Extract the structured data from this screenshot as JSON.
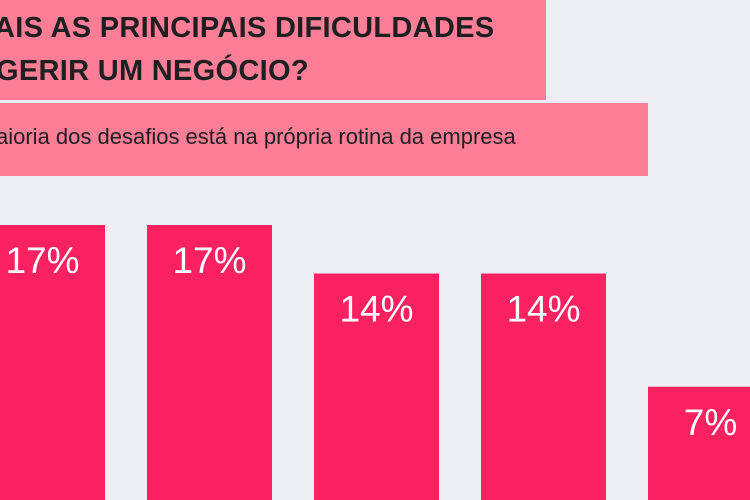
{
  "header": {
    "title_line_1": "AIS AS PRINCIPAIS DIFICULDADES",
    "title_line_2": "GERIR UM NEGÓCIO?",
    "subtitle": "aioria dos desafios está na própria rotina da empresa"
  },
  "colors": {
    "background": "#edeef3",
    "band": "#fb7d96",
    "bar": "#f92160",
    "bar_label": "#ffffff",
    "text": "#1f1f22"
  },
  "chart_data": {
    "type": "bar",
    "title": "",
    "xlabel": "",
    "ylabel": "",
    "categories": [
      "",
      "",
      "",
      "",
      ""
    ],
    "values": [
      17,
      17,
      14,
      14,
      7
    ],
    "labels": [
      "17%",
      "17%",
      "14%",
      "14%",
      "7%"
    ],
    "unit": "%",
    "ylim": [
      0,
      20
    ],
    "grid": false,
    "legend": "none"
  }
}
